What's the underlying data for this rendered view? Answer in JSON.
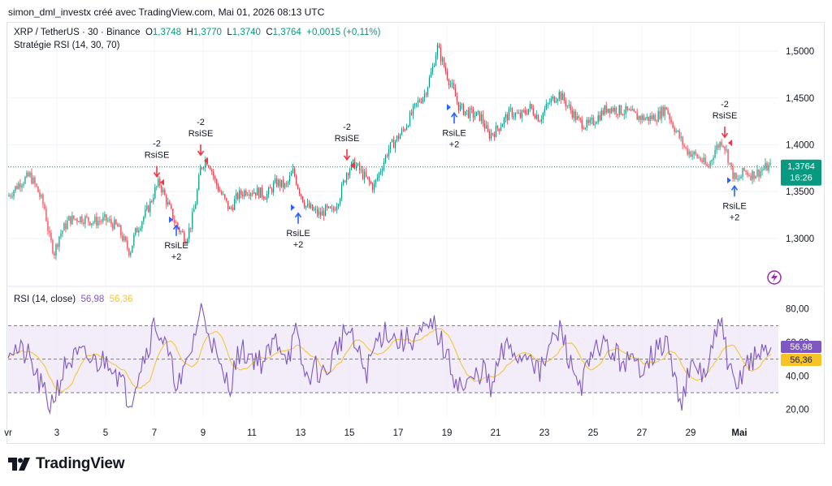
{
  "caption": "simon_dml_investx créé avec TradingView.com, Mai 01, 2026 08:13 UTC",
  "legend": {
    "symbol": "XRP / TetherUS · 30 · Binance",
    "o_key": "O",
    "o": "1,3748",
    "h_key": "H",
    "h": "1,3770",
    "l_key": "L",
    "l": "1,3740",
    "c_key": "C",
    "c": "1,3764",
    "change": "+0,0015 (+0,11%)",
    "strategy": "Stratégie RSI (14, 30, 70)"
  },
  "rsi_legend": {
    "label": "RSI (14, close)",
    "value1": "56,98",
    "value2": "56,36"
  },
  "brand": "TradingView",
  "colors": {
    "up": "#089981",
    "down": "#f23645",
    "rsi": "#7e57c2",
    "rsi_ma": "#f7c325",
    "band": "#ede7f6",
    "long": "#2962ff",
    "short": "#f23645"
  },
  "chart_data": [
    {
      "type": "candlestick",
      "title": "XRP / TetherUS · 30 · Binance",
      "x_ticks": [
        "vr",
        "3",
        "5",
        "7",
        "9",
        "11",
        "13",
        "15",
        "17",
        "19",
        "21",
        "23",
        "25",
        "27",
        "29",
        "Mai"
      ],
      "y_ticks": [
        "1,5000",
        "1,4500",
        "1,4000",
        "1,3500",
        "1,3000"
      ],
      "ylim": [
        1.26,
        1.52
      ],
      "last_price": "1,3764",
      "countdown": "16:26",
      "close_path": [
        [
          0,
          1.345
        ],
        [
          0.5,
          1.36
        ],
        [
          0.9,
          1.367
        ],
        [
          1.2,
          1.352
        ],
        [
          1.5,
          1.332
        ],
        [
          1.7,
          1.3
        ],
        [
          1.9,
          1.285
        ],
        [
          2.1,
          1.303
        ],
        [
          2.5,
          1.32
        ],
        [
          3.0,
          1.322
        ],
        [
          3.5,
          1.318
        ],
        [
          4.0,
          1.32
        ],
        [
          4.5,
          1.312
        ],
        [
          4.8,
          1.295
        ],
        [
          5.0,
          1.285
        ],
        [
          5.2,
          1.305
        ],
        [
          5.5,
          1.32
        ],
        [
          5.8,
          1.335
        ],
        [
          6.0,
          1.35
        ],
        [
          6.2,
          1.36
        ],
        [
          6.5,
          1.34
        ],
        [
          6.8,
          1.32
        ],
        [
          7.0,
          1.31
        ],
        [
          7.3,
          1.3
        ],
        [
          7.5,
          1.315
        ],
        [
          7.7,
          1.34
        ],
        [
          7.9,
          1.375
        ],
        [
          8.1,
          1.385
        ],
        [
          8.3,
          1.378
        ],
        [
          8.5,
          1.36
        ],
        [
          8.8,
          1.345
        ],
        [
          9.1,
          1.33
        ],
        [
          9.4,
          1.345
        ],
        [
          9.8,
          1.352
        ],
        [
          10.2,
          1.35
        ],
        [
          10.6,
          1.346
        ],
        [
          11.0,
          1.36
        ],
        [
          11.4,
          1.355
        ],
        [
          11.7,
          1.372
        ],
        [
          11.9,
          1.355
        ],
        [
          12.2,
          1.335
        ],
        [
          12.5,
          1.33
        ],
        [
          12.8,
          1.325
        ],
        [
          13.0,
          1.33
        ],
        [
          13.3,
          1.328
        ],
        [
          13.6,
          1.345
        ],
        [
          13.9,
          1.372
        ],
        [
          14.2,
          1.38
        ],
        [
          14.5,
          1.37
        ],
        [
          14.8,
          1.36
        ],
        [
          15.0,
          1.355
        ],
        [
          15.3,
          1.375
        ],
        [
          15.6,
          1.395
        ],
        [
          15.9,
          1.405
        ],
        [
          16.2,
          1.415
        ],
        [
          16.5,
          1.43
        ],
        [
          16.8,
          1.445
        ],
        [
          17.1,
          1.455
        ],
        [
          17.4,
          1.48
        ],
        [
          17.6,
          1.505
        ],
        [
          17.8,
          1.49
        ],
        [
          18.0,
          1.475
        ],
        [
          18.3,
          1.455
        ],
        [
          18.5,
          1.44
        ],
        [
          18.8,
          1.435
        ],
        [
          19.1,
          1.432
        ],
        [
          19.4,
          1.43
        ],
        [
          19.7,
          1.41
        ],
        [
          20.0,
          1.415
        ],
        [
          20.3,
          1.425
        ],
        [
          20.6,
          1.435
        ],
        [
          21.0,
          1.43
        ],
        [
          21.4,
          1.44
        ],
        [
          21.8,
          1.428
        ],
        [
          22.2,
          1.445
        ],
        [
          22.6,
          1.455
        ],
        [
          23.0,
          1.44
        ],
        [
          23.4,
          1.425
        ],
        [
          23.8,
          1.42
        ],
        [
          24.2,
          1.43
        ],
        [
          24.6,
          1.44
        ],
        [
          25.0,
          1.437
        ],
        [
          25.4,
          1.435
        ],
        [
          25.8,
          1.43
        ],
        [
          26.2,
          1.428
        ],
        [
          26.6,
          1.43
        ],
        [
          27.0,
          1.44
        ],
        [
          27.2,
          1.425
        ],
        [
          27.5,
          1.41
        ],
        [
          27.8,
          1.395
        ],
        [
          28.1,
          1.39
        ],
        [
          28.4,
          1.385
        ],
        [
          28.7,
          1.375
        ],
        [
          29.0,
          1.395
        ],
        [
          29.3,
          1.405
        ],
        [
          29.5,
          1.39
        ],
        [
          29.7,
          1.37
        ],
        [
          29.9,
          1.36
        ],
        [
          30.2,
          1.372
        ],
        [
          30.5,
          1.368
        ],
        [
          30.8,
          1.371
        ],
        [
          31.1,
          1.376
        ],
        [
          31.3,
          1.3764
        ]
      ],
      "signals": [
        {
          "label": "RsiSE",
          "qty": "-2",
          "x": 6.1,
          "price": 1.36
        },
        {
          "label": "RsiLE",
          "qty": "+2",
          "x": 6.9,
          "price": 1.32
        },
        {
          "label": "RsiSE",
          "qty": "-2",
          "x": 7.9,
          "price": 1.383
        },
        {
          "label": "RsiLE",
          "qty": "+2",
          "x": 11.9,
          "price": 1.333
        },
        {
          "label": "RsiSE",
          "qty": "-2",
          "x": 13.9,
          "price": 1.378
        },
        {
          "label": "RsiLE",
          "qty": "+2",
          "x": 18.3,
          "price": 1.44
        },
        {
          "label": "RsiSE",
          "qty": "-2",
          "x": 29.4,
          "price": 1.402
        },
        {
          "label": "RsiLE",
          "qty": "+2",
          "x": 29.8,
          "price": 1.362
        }
      ]
    },
    {
      "type": "line",
      "title": "RSI (14, close)",
      "y_ticks": [
        "80,00",
        "60,00",
        "40,00",
        "20,00"
      ],
      "ylim": [
        15,
        90
      ],
      "bands": {
        "upper": 70,
        "middle": 50,
        "lower": 30
      },
      "series": [
        {
          "name": "RSI (14, close)",
          "last": "56,98"
        },
        {
          "name": "",
          "last": "56,36"
        }
      ],
      "rsi_path": [
        [
          0,
          58
        ],
        [
          0.8,
          52
        ],
        [
          1.3,
          35
        ],
        [
          1.7,
          22
        ],
        [
          2.0,
          32
        ],
        [
          2.4,
          48
        ],
        [
          3.0,
          52
        ],
        [
          3.6,
          48
        ],
        [
          4.2,
          50
        ],
        [
          4.6,
          38
        ],
        [
          5.0,
          25
        ],
        [
          5.4,
          45
        ],
        [
          5.8,
          60
        ],
        [
          6.0,
          72
        ],
        [
          6.4,
          60
        ],
        [
          6.8,
          40
        ],
        [
          7.1,
          35
        ],
        [
          7.5,
          55
        ],
        [
          7.9,
          80
        ],
        [
          8.3,
          65
        ],
        [
          8.7,
          42
        ],
        [
          9.1,
          35
        ],
        [
          9.5,
          55
        ],
        [
          10.0,
          52
        ],
        [
          10.5,
          48
        ],
        [
          11.0,
          62
        ],
        [
          11.5,
          52
        ],
        [
          11.8,
          65
        ],
        [
          12.2,
          38
        ],
        [
          12.6,
          45
        ],
        [
          13.0,
          40
        ],
        [
          13.5,
          58
        ],
        [
          13.9,
          68
        ],
        [
          14.3,
          55
        ],
        [
          14.7,
          42
        ],
        [
          15.1,
          60
        ],
        [
          15.5,
          68
        ],
        [
          16.0,
          60
        ],
        [
          16.5,
          62
        ],
        [
          17.0,
          65
        ],
        [
          17.5,
          70
        ],
        [
          17.9,
          55
        ],
        [
          18.3,
          40
        ],
        [
          18.7,
          32
        ],
        [
          19.1,
          38
        ],
        [
          19.5,
          45
        ],
        [
          19.8,
          30
        ],
        [
          20.2,
          52
        ],
        [
          20.6,
          58
        ],
        [
          21.0,
          50
        ],
        [
          21.4,
          56
        ],
        [
          21.8,
          40
        ],
        [
          22.3,
          60
        ],
        [
          22.7,
          68
        ],
        [
          23.1,
          45
        ],
        [
          23.5,
          35
        ],
        [
          23.9,
          48
        ],
        [
          24.3,
          60
        ],
        [
          24.7,
          55
        ],
        [
          25.1,
          50
        ],
        [
          25.5,
          48
        ],
        [
          25.9,
          45
        ],
        [
          26.3,
          52
        ],
        [
          26.7,
          55
        ],
        [
          27.0,
          62
        ],
        [
          27.3,
          40
        ],
        [
          27.6,
          25
        ],
        [
          27.9,
          40
        ],
        [
          28.2,
          45
        ],
        [
          28.6,
          40
        ],
        [
          29.0,
          62
        ],
        [
          29.3,
          72
        ],
        [
          29.6,
          42
        ],
        [
          29.9,
          30
        ],
        [
          30.2,
          48
        ],
        [
          30.6,
          50
        ],
        [
          31.0,
          55
        ],
        [
          31.3,
          56.98
        ]
      ]
    }
  ]
}
